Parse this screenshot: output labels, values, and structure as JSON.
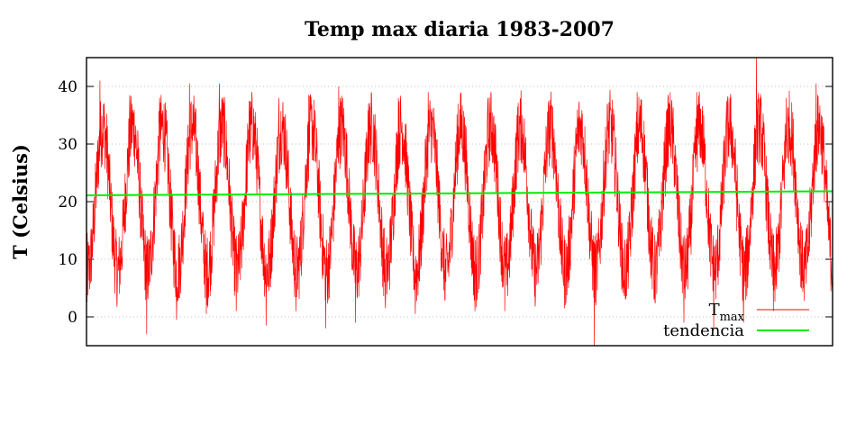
{
  "chart_data": {
    "type": "line",
    "title": "Temp max diaria 1983-2007",
    "ylabel": "T (Celsius)",
    "xlabel": "",
    "x_range": [
      "1983-01-01",
      "2007-12-31"
    ],
    "xlim": [
      1983.0,
      2008.0
    ],
    "ylim": [
      -5,
      45
    ],
    "yticks": [
      0,
      10,
      20,
      30,
      40
    ],
    "ytick_labels": [
      "0",
      "10",
      "20",
      "30",
      "40"
    ],
    "grid": "horizontal, dotted",
    "legend_position": "bottom-right",
    "series": [
      {
        "name": "T",
        "name_subscript": "max",
        "color": "#ff0000",
        "seasonal_annual_peaks": [
          41.0,
          38.5,
          38.0,
          40.5,
          40.5,
          37.5,
          38.0,
          38.5,
          40.0,
          37.0,
          38.0,
          39.0,
          37.0,
          38.0,
          36.5,
          35.5,
          36.0,
          37.0,
          39.0,
          36.0,
          39.0,
          37.5,
          45.0,
          38.0,
          40.5
        ],
        "seasonal_annual_minima": [
          2.5,
          2.5,
          -3.0,
          -0.5,
          0.5,
          1.0,
          -1.5,
          1.0,
          -2.0,
          -1.0,
          1.5,
          0.5,
          3.0,
          1.0,
          1.0,
          3.5,
          1.5,
          -5.0,
          4.0,
          3.0,
          -1.0,
          -2.0,
          -1.0,
          1.0,
          5.0
        ]
      },
      {
        "name": "tendencia",
        "color": "#00ee00",
        "x": [
          1983.0,
          2008.0
        ],
        "values": [
          21.1,
          21.8
        ]
      }
    ]
  }
}
